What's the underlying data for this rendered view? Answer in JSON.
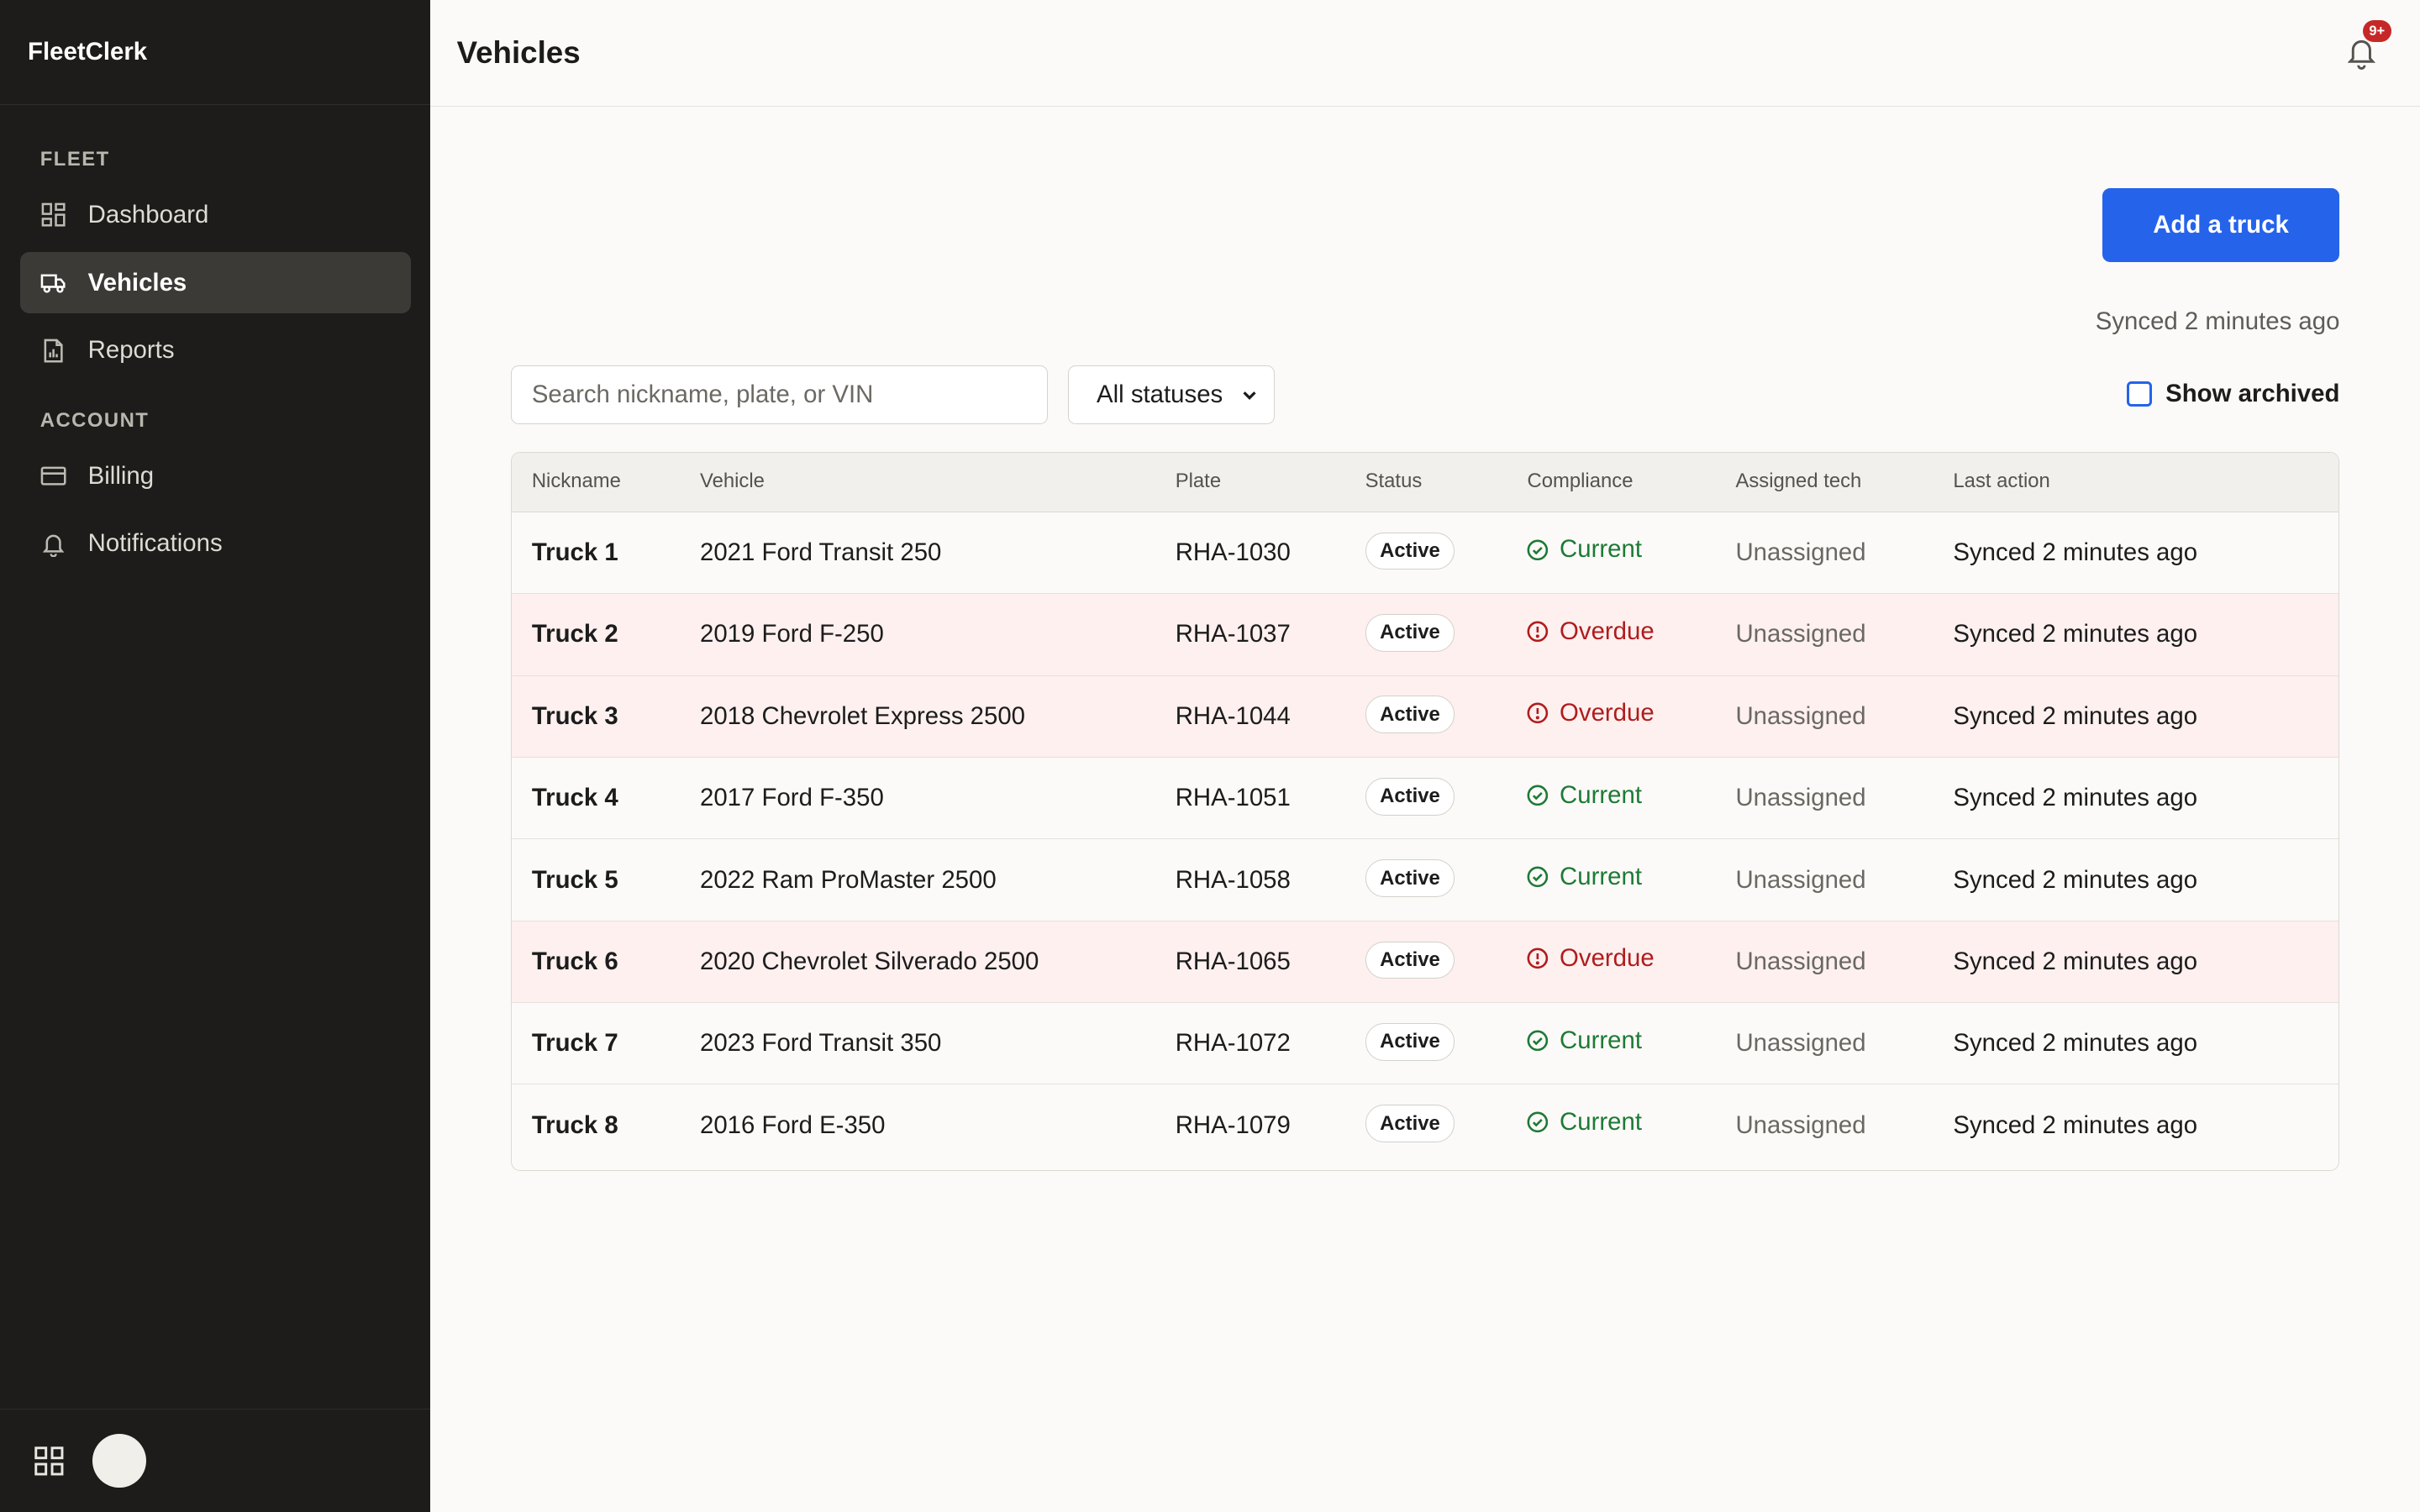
{
  "app": {
    "brand": "FleetClerk"
  },
  "sidebar": {
    "sections": [
      {
        "label": "FLEET"
      },
      {
        "label": "ACCOUNT"
      }
    ],
    "items": [
      {
        "label": "Dashboard",
        "icon": "dashboard-icon"
      },
      {
        "label": "Vehicles",
        "icon": "truck-icon",
        "active": true
      },
      {
        "label": "Reports",
        "icon": "report-icon"
      },
      {
        "label": "Billing",
        "icon": "credit-card-icon"
      },
      {
        "label": "Notifications",
        "icon": "bell-icon"
      }
    ]
  },
  "header": {
    "title": "Vehicles",
    "notification_badge": "9+"
  },
  "toolbar": {
    "add_label": "Add a truck",
    "synced_label": "Synced 2 minutes ago",
    "search_placeholder": "Search nickname, plate, or VIN",
    "status_filter": "All statuses",
    "show_archived_label": "Show archived"
  },
  "table": {
    "headers": [
      "Nickname",
      "Vehicle",
      "Plate",
      "Status",
      "Compliance",
      "Assigned tech",
      "Last action"
    ],
    "rows": [
      {
        "nickname": "Truck 1",
        "vehicle": "2021 Ford Transit 250",
        "plate": "RHA-1030",
        "status": "Active",
        "compliance": "Current",
        "tech": "Unassigned",
        "last": "Synced 2 minutes ago"
      },
      {
        "nickname": "Truck 2",
        "vehicle": "2019 Ford F-250",
        "plate": "RHA-1037",
        "status": "Active",
        "compliance": "Overdue",
        "tech": "Unassigned",
        "last": "Synced 2 minutes ago"
      },
      {
        "nickname": "Truck 3",
        "vehicle": "2018 Chevrolet Express 2500",
        "plate": "RHA-1044",
        "status": "Active",
        "compliance": "Overdue",
        "tech": "Unassigned",
        "last": "Synced 2 minutes ago"
      },
      {
        "nickname": "Truck 4",
        "vehicle": "2017 Ford F-350",
        "plate": "RHA-1051",
        "status": "Active",
        "compliance": "Current",
        "tech": "Unassigned",
        "last": "Synced 2 minutes ago"
      },
      {
        "nickname": "Truck 5",
        "vehicle": "2022 Ram ProMaster 2500",
        "plate": "RHA-1058",
        "status": "Active",
        "compliance": "Current",
        "tech": "Unassigned",
        "last": "Synced 2 minutes ago"
      },
      {
        "nickname": "Truck 6",
        "vehicle": "2020 Chevrolet Silverado 2500",
        "plate": "RHA-1065",
        "status": "Active",
        "compliance": "Overdue",
        "tech": "Unassigned",
        "last": "Synced 2 minutes ago"
      },
      {
        "nickname": "Truck 7",
        "vehicle": "2023 Ford Transit 350",
        "plate": "RHA-1072",
        "status": "Active",
        "compliance": "Current",
        "tech": "Unassigned",
        "last": "Synced 2 minutes ago"
      },
      {
        "nickname": "Truck 8",
        "vehicle": "2016 Ford E-350",
        "plate": "RHA-1079",
        "status": "Active",
        "compliance": "Current",
        "tech": "Unassigned",
        "last": "Synced 2 minutes ago"
      }
    ]
  },
  "colors": {
    "accent": "#2563eb",
    "sidebar_bg": "#1d1c1a",
    "current": "#1d7a35",
    "overdue": "#b01c1c",
    "overdue_row": "#fdf0ef"
  }
}
